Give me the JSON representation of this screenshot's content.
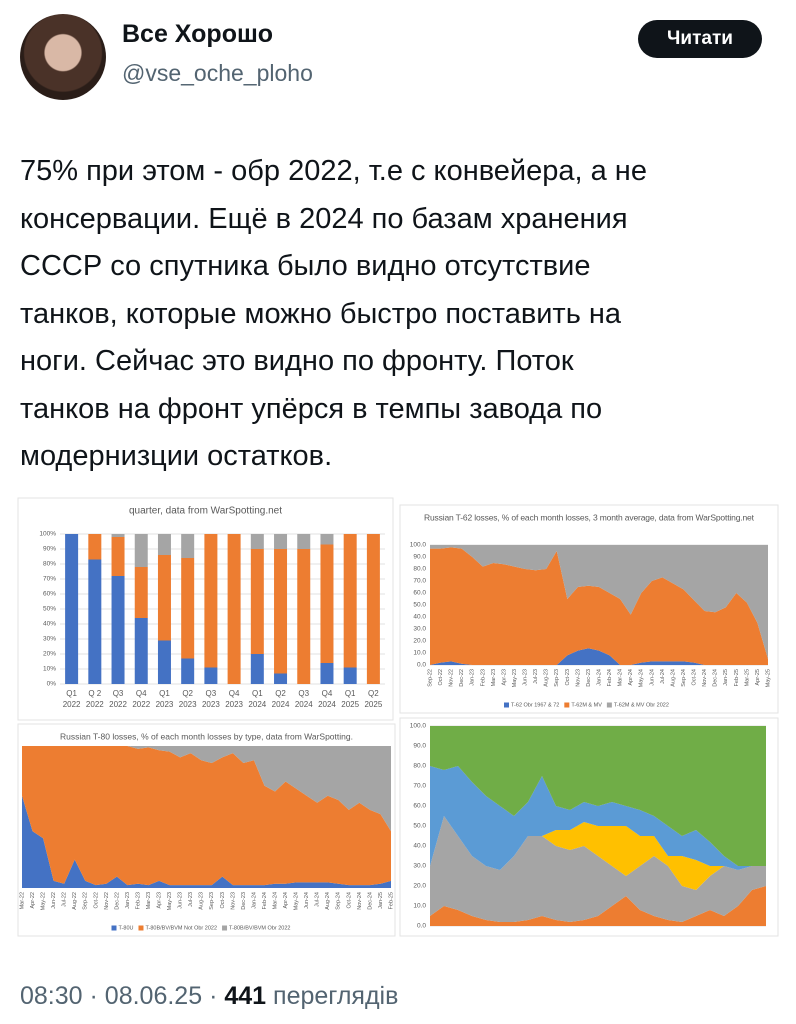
{
  "tweet": {
    "author": "Все Хорошо",
    "handle": "@vse_oche_ploho",
    "button": "Читати",
    "text": [
      "75% при этом - обр 2022, т.е с конвейера, а не",
      "консервации. Ещё в 2024 по базам хранения",
      "СССР со спутника было видно отсутствие",
      "танков, которые можно быстро поставить на",
      "ноги. Сейчас это видно по фронту. Поток",
      "танков на фронт упёрся в темпы завода по",
      "модернизции остатков."
    ],
    "time": "08:30",
    "separator": "·",
    "date": "08.06.25",
    "views": "441",
    "views_label": "переглядів"
  },
  "chart_data": [
    {
      "type": "stacked_bar",
      "title": "quarter, data from WarSpotting.net",
      "categories": [
        [
          "Q1",
          "2022"
        ],
        [
          "Q 2",
          "2022"
        ],
        [
          "Q3",
          "2022"
        ],
        [
          "Q4",
          "2022"
        ],
        [
          "Q1",
          "2023"
        ],
        [
          "Q2",
          "2023"
        ],
        [
          "Q3",
          "2023"
        ],
        [
          "Q4",
          "2023"
        ],
        [
          "Q1",
          "2024"
        ],
        [
          "Q2",
          "2024"
        ],
        [
          "Q3",
          "2024"
        ],
        [
          "Q4",
          "2024"
        ],
        [
          "Q1",
          "2025"
        ],
        [
          "Q2",
          "2025"
        ]
      ],
      "series": [
        {
          "color": "#4472c4",
          "values": [
            100,
            83,
            72,
            44,
            29,
            17,
            11,
            0,
            20,
            7,
            0,
            14,
            11,
            0
          ]
        },
        {
          "color": "#ed7d31",
          "values": [
            0,
            17,
            26,
            34,
            57,
            67,
            89,
            100,
            70,
            83,
            90,
            79,
            89,
            100
          ]
        },
        {
          "color": "#a5a5a5",
          "values": [
            0,
            0,
            2,
            22,
            14,
            16,
            0,
            0,
            10,
            10,
            10,
            7,
            0,
            0
          ]
        }
      ],
      "ylim": [
        0,
        100
      ],
      "yticks": [
        {
          "value": 0,
          "label": "0%"
        },
        {
          "value": 10,
          "label": "10%"
        },
        {
          "value": 20,
          "label": "20%"
        },
        {
          "value": 30,
          "label": "30%"
        },
        {
          "value": 40,
          "label": "40%"
        },
        {
          "value": 50,
          "label": "50%"
        },
        {
          "value": 60,
          "label": "60%"
        },
        {
          "value": 70,
          "label": "70%"
        },
        {
          "value": 80,
          "label": "80%"
        },
        {
          "value": 90,
          "label": "90%"
        },
        {
          "value": 100,
          "label": "100%"
        }
      ],
      "grid": true
    },
    {
      "type": "stacked_area",
      "title": "Russian T-62 losses, % of each month losses, 3 month average, data from WarSpotting.net",
      "categories": [
        "Sep-22",
        "Oct-22",
        "Nov-22",
        "Dec-22",
        "Jan-23",
        "Feb-23",
        "Mar-23",
        "Apr-23",
        "May-23",
        "Jun-23",
        "Jul-23",
        "Aug-23",
        "Sep-23",
        "Oct-23",
        "Nov-23",
        "Dec-23",
        "Jan-24",
        "Feb-24",
        "Mar-24",
        "Apr-24",
        "May-24",
        "Jun-24",
        "Jul-24",
        "Aug-24",
        "Sep-24",
        "Oct-24",
        "Nov-24",
        "Dec-24",
        "Jan-25",
        "Feb-25",
        "Mar-25",
        "Apr-25",
        "May-25"
      ],
      "series": [
        {
          "name": "T-62 Obr 1967 & 72",
          "color": "#4472c4",
          "values": [
            0,
            2,
            3,
            1,
            0,
            0,
            0,
            0,
            0,
            0,
            0,
            0,
            0,
            8,
            12,
            14,
            12,
            8,
            0,
            0,
            2,
            3,
            3,
            3,
            3,
            2,
            0,
            0,
            0,
            0,
            0,
            0,
            0
          ]
        },
        {
          "name": "T-62M & MV",
          "color": "#ed7d31",
          "values": [
            97,
            95,
            95,
            96,
            90,
            82,
            85,
            84,
            82,
            80,
            79,
            80,
            95,
            47,
            53,
            52,
            53,
            52,
            55,
            42,
            58,
            67,
            70,
            65,
            60,
            52,
            45,
            44,
            48,
            60,
            52,
            35,
            5
          ]
        },
        {
          "name": "T-62M & MV Obr 2022",
          "color": "#a5a5a5",
          "values": [
            3,
            3,
            2,
            3,
            10,
            18,
            15,
            16,
            18,
            20,
            21,
            20,
            5,
            45,
            35,
            34,
            35,
            40,
            45,
            58,
            40,
            30,
            27,
            32,
            37,
            46,
            55,
            56,
            52,
            40,
            48,
            65,
            95
          ]
        }
      ],
      "ylim": [
        0,
        100
      ],
      "yticks": [
        {
          "value": 0,
          "label": "0.0"
        },
        {
          "value": 10,
          "label": "10.0"
        },
        {
          "value": 20,
          "label": "20.0"
        },
        {
          "value": 30,
          "label": "30.0"
        },
        {
          "value": 40,
          "label": "40.0"
        },
        {
          "value": 50,
          "label": "50.0"
        },
        {
          "value": 60,
          "label": "60.0"
        },
        {
          "value": 70,
          "label": "70.0"
        },
        {
          "value": 80,
          "label": "80.0"
        },
        {
          "value": 90,
          "label": "90.0"
        },
        {
          "value": 100,
          "label": "100.0"
        }
      ],
      "grid": true,
      "legend": "bottom"
    },
    {
      "type": "stacked_area",
      "title": "Russian T-80 losses, % of each month losses by type, data from WarSpotting.",
      "categories": [
        "Mar-22",
        "Apr-22",
        "May-22",
        "Jun-22",
        "Jul-22",
        "Aug-22",
        "Sep-22",
        "Oct-22",
        "Nov-22",
        "Dec-22",
        "Jan-23",
        "Feb-23",
        "Mar-23",
        "Apr-23",
        "May-23",
        "Jun-23",
        "Jul-23",
        "Aug-23",
        "Sep-23",
        "Oct-23",
        "Nov-23",
        "Dec-23",
        "Jan-24",
        "Feb-24",
        "Mar-24",
        "Apr-24",
        "May-24",
        "Jun-24",
        "Jul-24",
        "Aug-24",
        "Sep-24",
        "Oct-24",
        "Nov-24",
        "Dec-24",
        "Jan-25",
        "Feb-25"
      ],
      "series": [
        {
          "name": "T-80U",
          "color": "#4472c4",
          "values": [
            65,
            40,
            35,
            5,
            3,
            20,
            5,
            2,
            3,
            8,
            2,
            3,
            2,
            5,
            2,
            2,
            2,
            2,
            2,
            8,
            2,
            2,
            2,
            2,
            3,
            3,
            4,
            4,
            4,
            4,
            3,
            2,
            2,
            2,
            3,
            5
          ]
        },
        {
          "name": "T-80B/BV/BVM Not Obr 2022",
          "color": "#ed7d31",
          "values": [
            35,
            60,
            65,
            95,
            97,
            80,
            95,
            98,
            97,
            92,
            98,
            95,
            97,
            92,
            94,
            90,
            93,
            88,
            86,
            84,
            93,
            86,
            88,
            70,
            65,
            72,
            66,
            61,
            56,
            61,
            59,
            53,
            58,
            53,
            49,
            35
          ]
        },
        {
          "name": "T-80B/BV/BVM Obr 2022",
          "color": "#a5a5a5",
          "values": [
            0,
            0,
            0,
            0,
            0,
            0,
            0,
            0,
            0,
            0,
            0,
            2,
            1,
            3,
            4,
            8,
            5,
            10,
            12,
            8,
            5,
            12,
            10,
            28,
            32,
            25,
            30,
            35,
            40,
            35,
            38,
            45,
            40,
            45,
            48,
            60
          ]
        }
      ],
      "ylim": [
        0,
        100
      ],
      "grid": false,
      "legend": "bottom"
    },
    {
      "type": "stacked_area",
      "series": [
        {
          "color": "#ed7d31",
          "values": [
            5,
            10,
            8,
            5,
            3,
            2,
            2,
            3,
            5,
            3,
            2,
            3,
            5,
            10,
            15,
            8,
            5,
            3,
            2,
            5,
            8,
            5,
            10,
            18,
            20
          ]
        },
        {
          "color": "#a5a5a5",
          "values": [
            25,
            45,
            37,
            30,
            27,
            26,
            33,
            42,
            40,
            37,
            36,
            37,
            30,
            20,
            10,
            22,
            30,
            27,
            18,
            13,
            17,
            25,
            18,
            12,
            10
          ]
        },
        {
          "color": "#ffc000",
          "values": [
            0,
            0,
            0,
            0,
            0,
            0,
            0,
            0,
            0,
            8,
            10,
            12,
            15,
            20,
            25,
            15,
            10,
            5,
            15,
            15,
            5,
            0,
            0,
            0,
            0
          ]
        },
        {
          "color": "#5b9bd5",
          "values": [
            50,
            23,
            35,
            37,
            35,
            32,
            20,
            17,
            30,
            12,
            10,
            10,
            10,
            12,
            10,
            13,
            10,
            15,
            10,
            15,
            12,
            5,
            2,
            0,
            0
          ]
        },
        {
          "color": "#70ad47",
          "values": [
            20,
            22,
            20,
            28,
            35,
            40,
            45,
            38,
            25,
            40,
            42,
            38,
            40,
            38,
            40,
            42,
            45,
            50,
            55,
            52,
            58,
            65,
            70,
            70,
            70
          ]
        }
      ],
      "ylim": [
        0,
        100
      ],
      "yticks": [
        {
          "value": 0,
          "label": "0.0"
        },
        {
          "value": 10,
          "label": "10.0"
        },
        {
          "value": 20,
          "label": "20.0"
        },
        {
          "value": 30,
          "label": "30.0"
        },
        {
          "value": 40,
          "label": "40.0"
        },
        {
          "value": 50,
          "label": "50.0"
        },
        {
          "value": 60,
          "label": "60.0"
        },
        {
          "value": 70,
          "label": "70.0"
        },
        {
          "value": 80,
          "label": "80.0"
        },
        {
          "value": 90,
          "label": "90.0"
        },
        {
          "value": 100,
          "label": "100.0"
        }
      ],
      "grid": true
    }
  ]
}
